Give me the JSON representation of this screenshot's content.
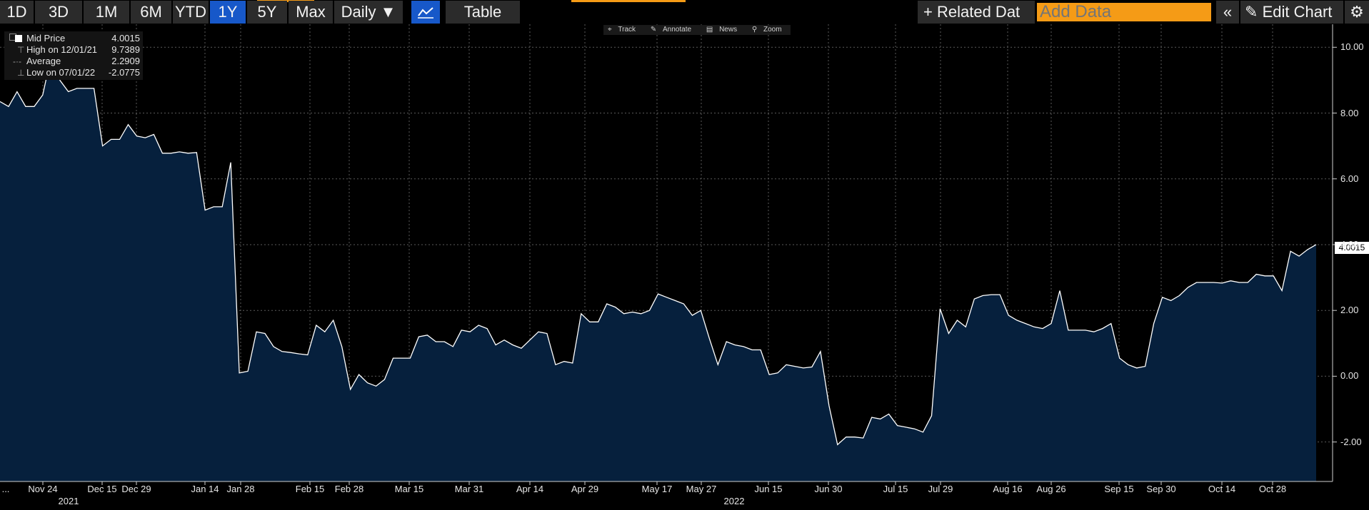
{
  "toolbar": {
    "ranges": [
      "1D",
      "3D",
      "1M",
      "6M",
      "YTD",
      "1Y",
      "5Y",
      "Max"
    ],
    "active_range": "1Y",
    "frequency": "Daily ▼",
    "chart_icon": "line-chart-icon",
    "table_label": "Table",
    "related_data_label": "Related Dat",
    "add_data_placeholder": "Add Data",
    "collapse_icon": "double-chevron-left-icon",
    "edit_chart_label": "Edit Chart",
    "settings_icon": "gear-icon"
  },
  "tools": [
    "Track",
    "Annotate",
    "News",
    "Zoom"
  ],
  "legend": {
    "mid_price_label": "Mid Price",
    "mid_price_value": "4.0015",
    "high_label": "High on 12/01/21",
    "high_value": "9.7389",
    "average_label": "Average",
    "average_value": "2.2909",
    "low_label": "Low on 07/01/22",
    "low_value": "-2.0775"
  },
  "price_tag": "4.0015",
  "colors": {
    "fill": "#06203d",
    "line": "#ffffff",
    "accent": "#1758c9",
    "input": "#f59b16"
  },
  "chart_data": {
    "type": "area",
    "grid": true,
    "ylim": [
      -3.2,
      10.7
    ],
    "yticks": [
      -2.0,
      0.0,
      2.0,
      4.0,
      6.0,
      8.0,
      10.0
    ],
    "ytick_labels": [
      "-2.00",
      "0.00",
      "2.00",
      "4.00",
      "6.00",
      "8.00",
      "10.00"
    ],
    "xtick_labels": [
      "...",
      "Nov 24",
      "Dec 15",
      "Dec 29",
      "Jan 14",
      "Jan 28",
      "Feb 15",
      "Feb 28",
      "Mar 15",
      "Mar 31",
      "Apr 14",
      "Apr 29",
      "May 17",
      "May 27",
      "Jun 15",
      "Jun 30",
      "Jul 15",
      "Jul 29",
      "Aug 16",
      "Aug 26",
      "Sep 15",
      "Sep 30",
      "Oct 14",
      "Oct 28"
    ],
    "year_labels": [
      "2021",
      "2022"
    ],
    "series": [
      {
        "values": [
          8.35,
          8.2,
          8.65,
          8.2,
          8.2,
          8.55,
          9.74,
          9.0,
          8.65,
          8.75,
          8.75,
          8.75,
          7.0,
          7.2,
          7.2,
          7.65,
          7.3,
          7.25,
          7.35,
          6.78,
          6.78,
          6.82,
          6.78,
          6.8,
          5.05,
          5.15,
          5.15,
          6.5,
          0.1,
          0.15,
          1.35,
          1.3,
          0.9,
          0.75,
          0.72,
          0.68,
          0.65,
          1.55,
          1.35,
          1.7,
          0.9,
          -0.4,
          0.05,
          -0.2,
          -0.3,
          -0.1,
          0.55,
          0.55,
          0.55,
          1.2,
          1.25,
          1.05,
          1.05,
          0.9,
          1.4,
          1.35,
          1.55,
          1.45,
          0.95,
          1.1,
          0.95,
          0.85,
          1.1,
          1.35,
          1.3,
          0.35,
          0.45,
          0.4,
          1.9,
          1.65,
          1.65,
          2.2,
          2.1,
          1.9,
          1.95,
          1.9,
          2.0,
          2.5,
          2.4,
          2.3,
          2.2,
          1.85,
          2.0,
          1.15,
          0.35,
          1.05,
          0.95,
          0.9,
          0.8,
          0.8,
          0.05,
          0.1,
          0.35,
          0.3,
          0.25,
          0.28,
          0.75,
          -0.9,
          -2.08,
          -1.85,
          -1.85,
          -1.88,
          -1.25,
          -1.3,
          -1.15,
          -1.5,
          -1.55,
          -1.6,
          -1.7,
          -1.2,
          2.05,
          1.3,
          1.7,
          1.5,
          2.35,
          2.45,
          2.48,
          2.48,
          1.85,
          1.7,
          1.6,
          1.5,
          1.45,
          1.6,
          2.6,
          1.4,
          1.4,
          1.4,
          1.35,
          1.45,
          1.6,
          0.55,
          0.35,
          0.25,
          0.3,
          1.6,
          2.4,
          2.3,
          2.45,
          2.7,
          2.85,
          2.85,
          2.85,
          2.83,
          2.9,
          2.85,
          2.85,
          3.1,
          3.05,
          3.05,
          2.6,
          3.8,
          3.65,
          3.85,
          4.0015
        ]
      }
    ]
  }
}
